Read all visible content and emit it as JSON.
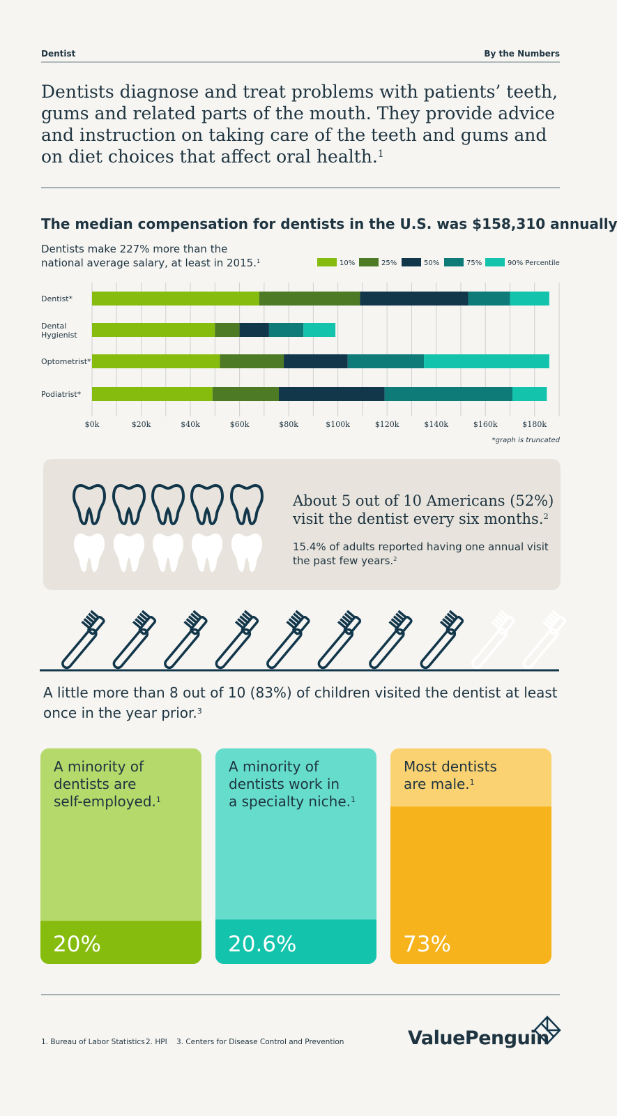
{
  "header": {
    "left": "Dentist",
    "right": "By the Numbers"
  },
  "intro": {
    "lines": [
      "Dentists diagnose and treat problems with patients’ teeth,",
      "gums and related parts of the mouth. They provide advice",
      "and instruction on taking care of the teeth and gums and",
      "on diet choices that affect oral health."
    ],
    "note": "1"
  },
  "compensation": {
    "heading": "The median compensation for dentists in the U.S. was $158,310 annually.",
    "lines": [
      "Dentists make 227% more than the",
      "national average salary, at least in 2015."
    ],
    "note": "1"
  },
  "chart_data": {
    "type": "stacked-bar-horizontal",
    "categories": [
      "Dentist*",
      "Dental Hygienist",
      "Optometrist*",
      "Podiatrist*"
    ],
    "series": [
      {
        "name": "10%",
        "color": "#86bc0e",
        "values": [
          68,
          50,
          52,
          49
        ]
      },
      {
        "name": "25%",
        "color": "#4d7a24",
        "values": [
          41,
          10,
          26,
          27
        ]
      },
      {
        "name": "50%",
        "color": "#12364a",
        "values": [
          44,
          12,
          26,
          43
        ]
      },
      {
        "name": "75%",
        "color": "#0e7b79",
        "values": [
          17,
          14,
          31,
          52
        ]
      },
      {
        "name": "90% Percentile",
        "color": "#14c3ac",
        "values": [
          16,
          13,
          51,
          14
        ]
      }
    ],
    "xlim": [
      0,
      190
    ],
    "xticks": [
      {
        "value": 0,
        "label": "$0k"
      },
      {
        "value": 20,
        "label": "$20k"
      },
      {
        "value": 40,
        "label": "$40k"
      },
      {
        "value": 60,
        "label": "$60k"
      },
      {
        "value": 80,
        "label": "$80k"
      },
      {
        "value": 100,
        "label": "$100k"
      },
      {
        "value": 120,
        "label": "$120k"
      },
      {
        "value": 140,
        "label": "$140k"
      },
      {
        "value": 160,
        "label": "$160k"
      },
      {
        "value": 180,
        "label": "$180k"
      }
    ],
    "minor_xticks": [
      10,
      30,
      50,
      70,
      90,
      110,
      130,
      150,
      170
    ],
    "grid": true,
    "legend": "top-right",
    "annotation": "*graph is truncated"
  },
  "visits": {
    "lines": [
      "About 5 out of 10 Americans (52%)",
      "visit the dentist every six months."
    ],
    "detail": [
      "15.4% of adults reported having one annual visit",
      "the past few years."
    ],
    "note": "2"
  },
  "children": {
    "lines": [
      "A little more than 8 out of 10 (83%) of children visited the dentist at least",
      "once in the year prior."
    ],
    "note": "3"
  },
  "cards": [
    {
      "lines": [
        "A minority of",
        "dentists are",
        "self-employed."
      ],
      "note": "1",
      "value": 20,
      "value_label": "20%",
      "color": "#86bc0e",
      "light": "#b5d96a"
    },
    {
      "lines": [
        "A minority of",
        "dentists work in",
        "a specialty niche."
      ],
      "note": "1",
      "value": 20.6,
      "value_label": "20.6%",
      "color": "#14c3ac",
      "light": "#66dccd"
    },
    {
      "lines": [
        "Most dentists",
        "are male."
      ],
      "note": "1",
      "value": 73,
      "value_label": "73%",
      "color": "#f6b31c",
      "light": "#fbd272"
    }
  ],
  "footnotes": [
    "1.  Bureau of Labor Statistics",
    "2.  HPI",
    "3.  Centers for Disease Control and Prevention"
  ],
  "logo": "ValuePenguin"
}
